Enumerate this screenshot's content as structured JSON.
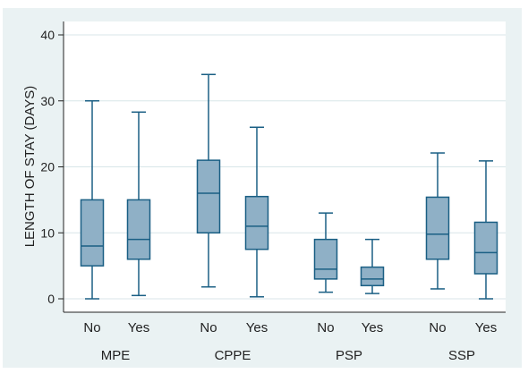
{
  "chart_data": {
    "type": "box",
    "title": "",
    "xlabel": "",
    "ylabel": "LENGTH OF STAY (DAYS)",
    "ylim": [
      0,
      40
    ],
    "yticks": [
      0,
      10,
      20,
      30,
      40
    ],
    "grid": true,
    "colors": {
      "background": "#eaf2f3",
      "plot_area": "#ffffff",
      "box_fill": "#8fb0c6",
      "box_stroke": "#1a5f84",
      "grid": "#d8e6e8"
    },
    "groups": [
      {
        "label": "MPE",
        "boxes": [
          {
            "category": "No",
            "min": 0,
            "q1": 5,
            "median": 8,
            "q3": 15,
            "max": 30
          },
          {
            "category": "Yes",
            "min": 0.5,
            "q1": 6,
            "median": 9,
            "q3": 15,
            "max": 28.3
          }
        ]
      },
      {
        "label": "CPPE",
        "boxes": [
          {
            "category": "No",
            "min": 1.8,
            "q1": 10,
            "median": 16,
            "q3": 21,
            "max": 34
          },
          {
            "category": "Yes",
            "min": 0.3,
            "q1": 7.5,
            "median": 11,
            "q3": 15.5,
            "max": 26
          }
        ]
      },
      {
        "label": "PSP",
        "boxes": [
          {
            "category": "No",
            "min": 1,
            "q1": 3,
            "median": 4.5,
            "q3": 9,
            "max": 13
          },
          {
            "category": "Yes",
            "min": 0.8,
            "q1": 2,
            "median": 3,
            "q3": 4.8,
            "max": 9
          }
        ]
      },
      {
        "label": "SSP",
        "boxes": [
          {
            "category": "No",
            "min": 1.5,
            "q1": 6,
            "median": 9.8,
            "q3": 15.4,
            "max": 22.1
          },
          {
            "category": "Yes",
            "min": 0,
            "q1": 3.8,
            "median": 7,
            "q3": 11.6,
            "max": 20.9
          }
        ]
      }
    ]
  }
}
